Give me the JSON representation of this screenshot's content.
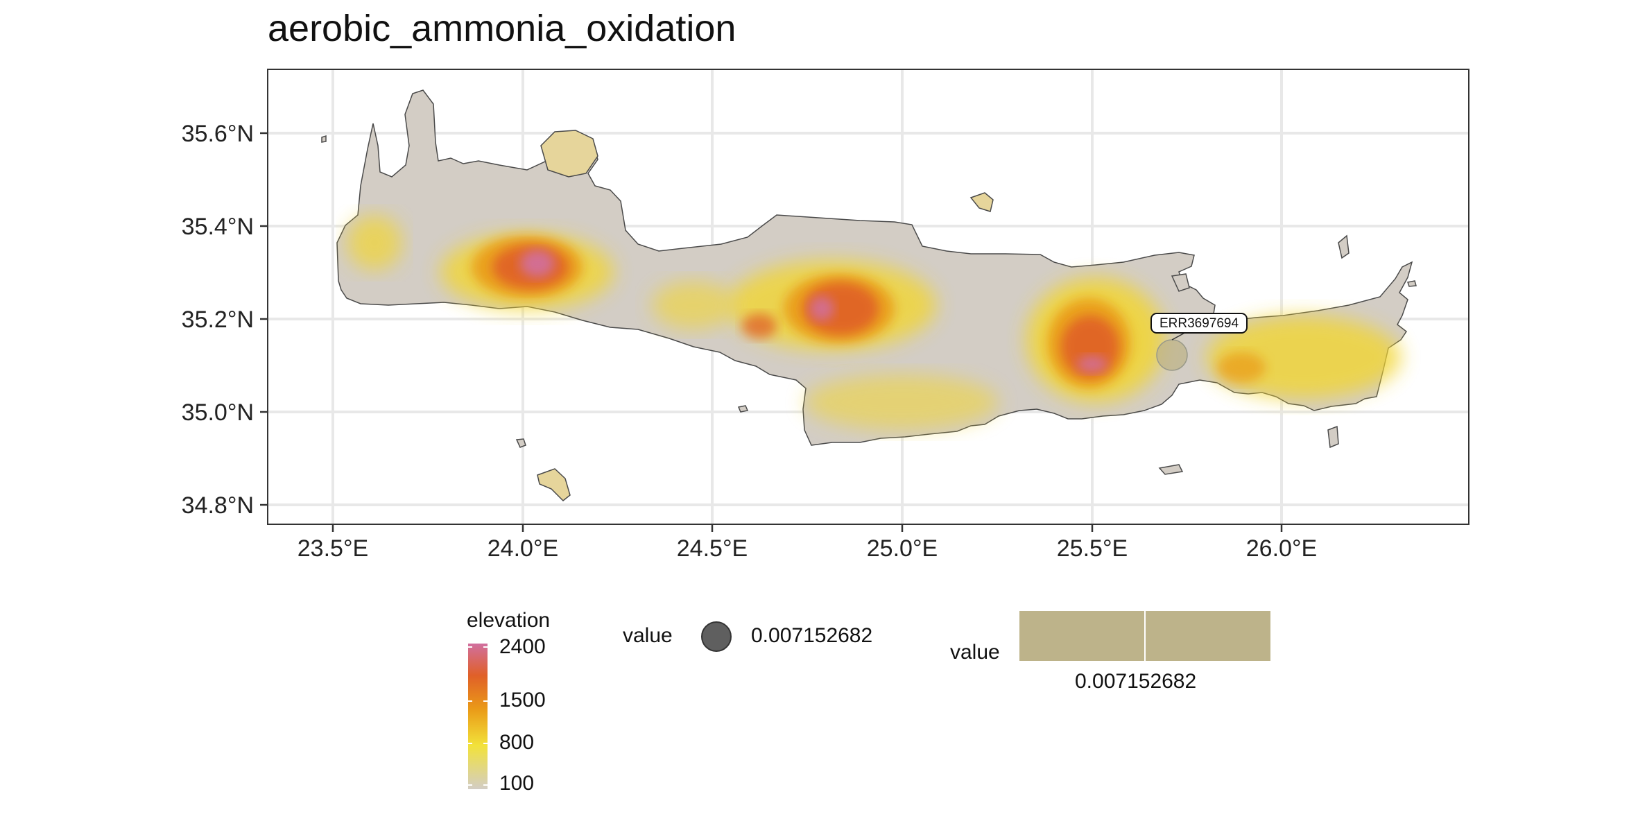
{
  "title": "aerobic_ammonia_oxidation",
  "map": {
    "y_ticks": [
      "35.6°N",
      "35.4°N",
      "35.2°N",
      "35.0°N",
      "34.8°N"
    ],
    "x_ticks": [
      "23.5°E",
      "24.0°E",
      "24.5°E",
      "25.0°E",
      "25.5°E",
      "26.0°E"
    ],
    "lon_range": [
      23.35,
      26.45
    ],
    "lat_range": [
      34.76,
      35.73
    ],
    "sample_point": {
      "label": "ERR3697694",
      "lon": 25.72,
      "lat": 35.12,
      "value": 0.007152682
    }
  },
  "legend": {
    "elevation": {
      "title": "elevation",
      "ticks": [
        "2400",
        "1500",
        "800",
        "100"
      ],
      "colors": [
        "#d16f9f",
        "#e06028",
        "#ea9a18",
        "#f2d532",
        "#d3cdc5"
      ]
    },
    "size": {
      "title": "value",
      "label": "0.007152682"
    },
    "fill": {
      "title": "value",
      "label": "0.007152682",
      "color": "#bdb38a"
    }
  },
  "colors": {
    "land_base": "#d3cdc5",
    "water": "#ffffff",
    "grid": "#e8e8e8",
    "panel_border": "#333333",
    "point": "#5f5f5f"
  }
}
